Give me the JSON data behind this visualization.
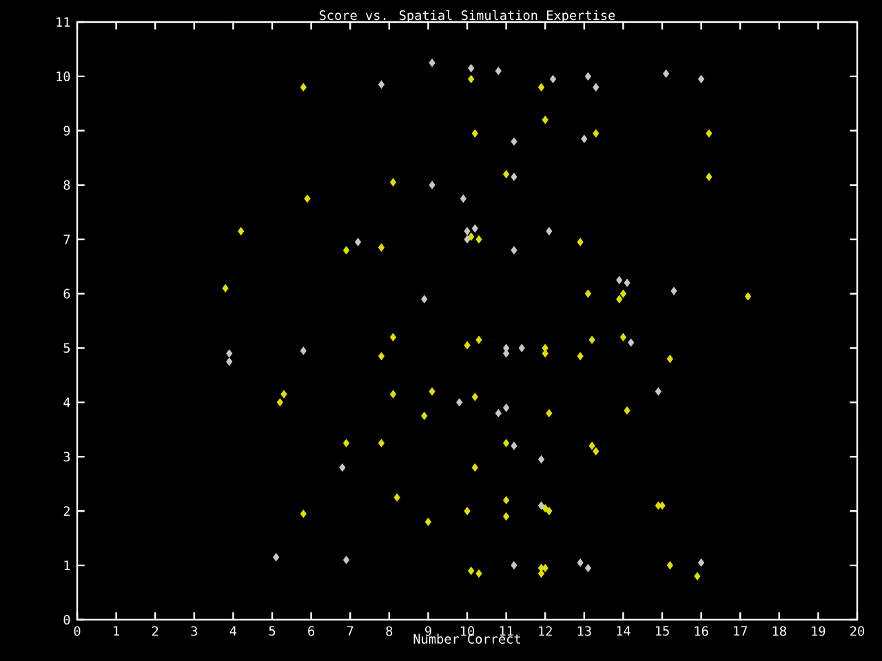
{
  "chart_data": {
    "type": "scatter",
    "title": "Score vs. Spatial Simulation Expertise",
    "xlabel": "Number Correct",
    "xlim": [
      0,
      20
    ],
    "ylim": [
      0,
      11
    ],
    "xticks": [
      0,
      1,
      2,
      3,
      4,
      5,
      6,
      7,
      8,
      9,
      10,
      11,
      12,
      13,
      14,
      15,
      16,
      17,
      18,
      19,
      20
    ],
    "yticks": [
      0,
      1,
      2,
      3,
      4,
      5,
      6,
      7,
      8,
      9,
      10,
      11
    ],
    "marker": "diamond",
    "series": [
      {
        "color": "#c8c8c8",
        "x": [
          9.1,
          10.1,
          10.8,
          12.2,
          13.1,
          13.3,
          15.1,
          16.0,
          7.8,
          11.2,
          13.0,
          11.2,
          9.1,
          9.9,
          10.0,
          10.0,
          10.2,
          7.2,
          11.2,
          12.1,
          13.9,
          14.1,
          15.3,
          8.9,
          3.9,
          3.9,
          5.8,
          11.0,
          11.0,
          11.4,
          14.2,
          14.9,
          9.8,
          10.8,
          11.0,
          11.2,
          11.9,
          6.8,
          11.9,
          5.1,
          6.9,
          11.2,
          12.9,
          13.1,
          16.0
        ],
        "values": [
          10.25,
          10.15,
          10.1,
          9.95,
          10.0,
          9.8,
          10.05,
          9.95,
          9.85,
          8.8,
          8.85,
          8.15,
          8.0,
          7.75,
          7.15,
          7.0,
          7.2,
          6.95,
          6.8,
          7.15,
          6.25,
          6.2,
          6.05,
          5.9,
          4.9,
          4.75,
          4.95,
          5.0,
          4.9,
          5.0,
          5.1,
          4.2,
          4.0,
          3.8,
          3.9,
          3.2,
          2.95,
          2.8,
          2.1,
          1.15,
          1.1,
          1.0,
          1.05,
          0.95,
          1.05
        ]
      },
      {
        "color": "#e0e000",
        "x": [
          10.1,
          5.8,
          11.9,
          12.0,
          10.2,
          13.3,
          16.2,
          8.1,
          11.0,
          16.2,
          5.9,
          4.2,
          10.1,
          10.3,
          6.9,
          7.8,
          12.9,
          3.8,
          13.1,
          13.9,
          14.0,
          17.2,
          8.1,
          10.0,
          10.3,
          12.0,
          12.0,
          13.2,
          14.0,
          7.8,
          12.9,
          15.2,
          5.3,
          5.2,
          8.1,
          9.1,
          10.2,
          8.9,
          12.1,
          14.1,
          6.9,
          7.8,
          11.0,
          13.2,
          13.3,
          10.2,
          8.2,
          11.0,
          12.0,
          12.1,
          14.9,
          15.0,
          5.8,
          10.0,
          9.0,
          11.0,
          10.1,
          10.3,
          11.9,
          11.9,
          12.0,
          15.2,
          15.9
        ],
        "values": [
          9.95,
          9.8,
          9.8,
          9.2,
          8.95,
          8.95,
          8.95,
          8.05,
          8.2,
          8.15,
          7.75,
          7.15,
          7.05,
          7.0,
          6.8,
          6.85,
          6.95,
          6.1,
          6.0,
          5.9,
          6.0,
          5.95,
          5.2,
          5.05,
          5.15,
          5.0,
          4.9,
          5.15,
          5.2,
          4.85,
          4.85,
          4.8,
          4.15,
          4.0,
          4.15,
          4.2,
          4.1,
          3.75,
          3.8,
          3.85,
          3.25,
          3.25,
          3.25,
          3.2,
          3.1,
          2.8,
          2.25,
          2.2,
          2.05,
          2.0,
          2.1,
          2.1,
          1.95,
          2.0,
          1.8,
          1.9,
          0.9,
          0.85,
          0.95,
          0.85,
          0.95,
          1.0,
          0.8
        ]
      }
    ]
  }
}
